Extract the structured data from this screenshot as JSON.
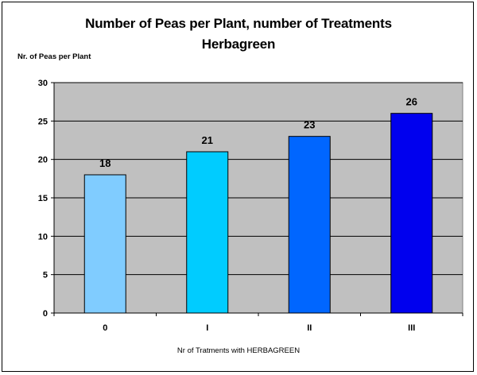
{
  "chart_data": {
    "type": "bar",
    "title": "Number of Peas per Plant, number of Treatments Herbagreen",
    "title_lines": [
      "Number of Peas per Plant, number of Treatments",
      "Herbagreen"
    ],
    "ylabel": "Nr. of Peas per Plant",
    "xlabel": "Nr of Tratments with HERBAGREEN",
    "categories": [
      "0",
      "I",
      "II",
      "III"
    ],
    "values": [
      18,
      21,
      23,
      26
    ],
    "data_labels": [
      "18",
      "21",
      "23",
      "26"
    ],
    "bar_colors": [
      "#80ccff",
      "#00ccff",
      "#0066ff",
      "#0000ee"
    ],
    "ylim": [
      0,
      30
    ],
    "yticks": [
      0,
      5,
      10,
      15,
      20,
      25,
      30
    ],
    "grid": true,
    "plot_background": "#c0c0c0",
    "legend": "none"
  }
}
